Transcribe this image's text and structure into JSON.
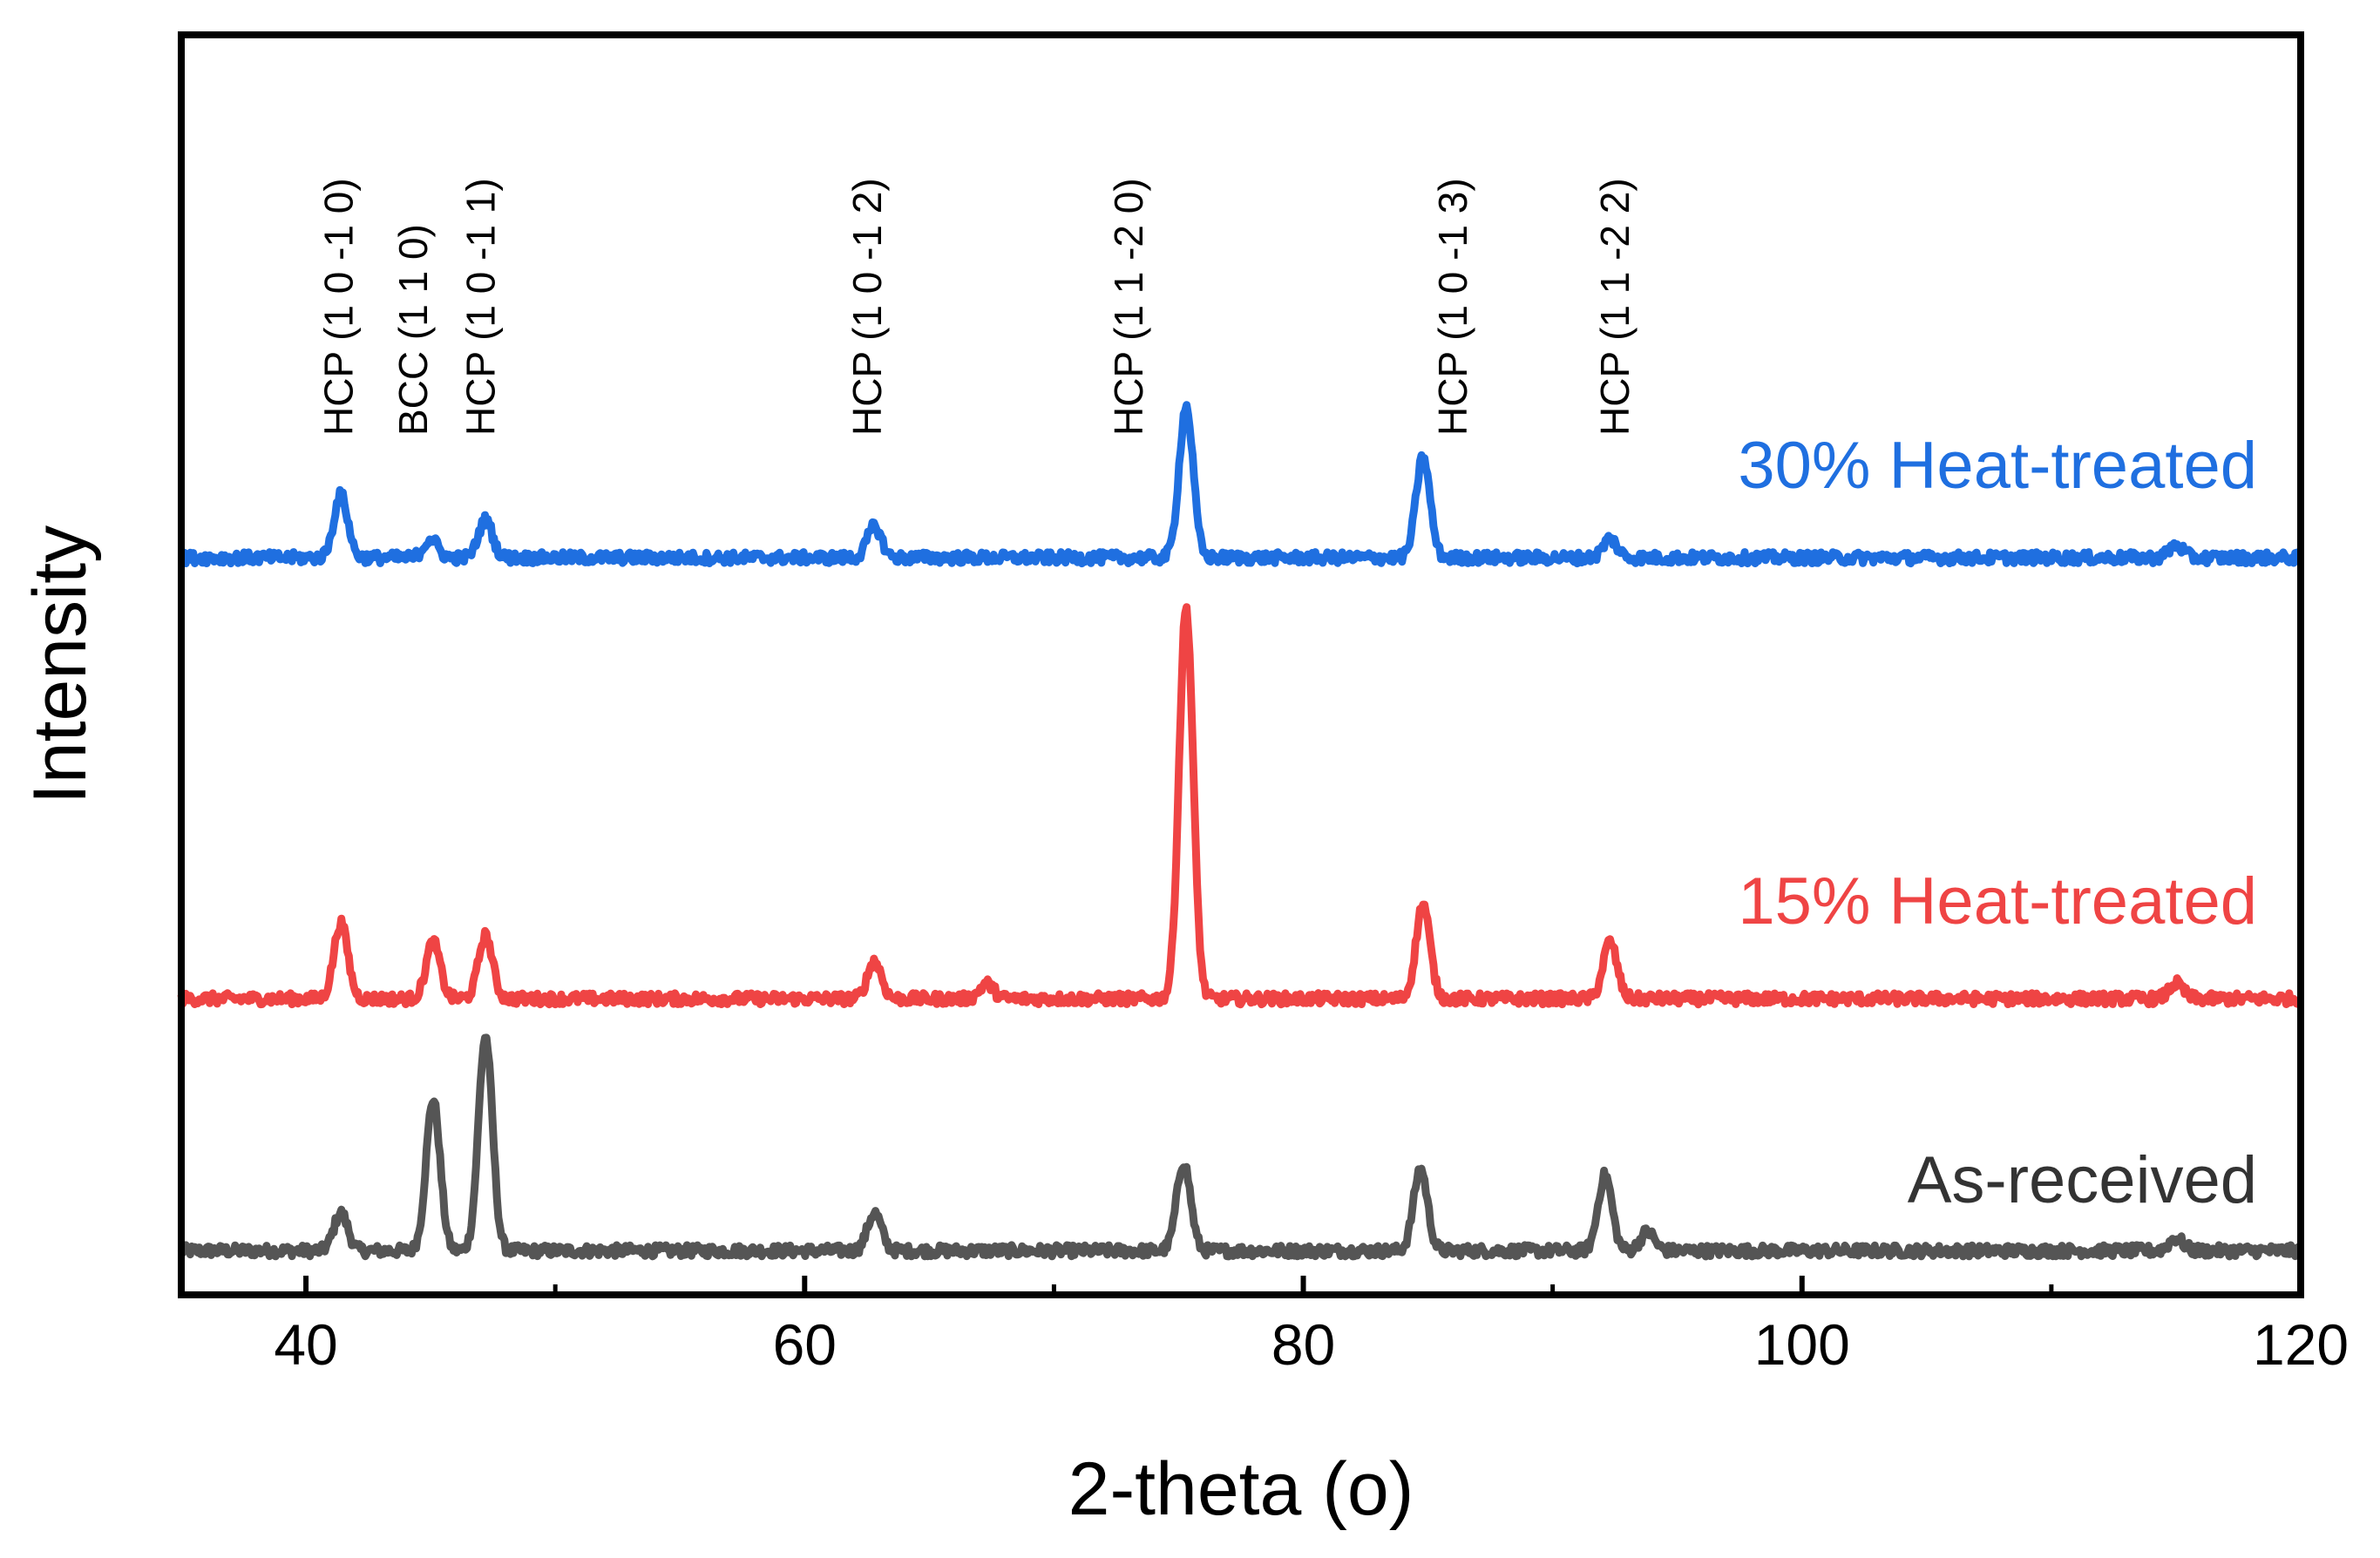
{
  "chart_data": {
    "type": "line",
    "title": "",
    "xlabel": "2-theta (o)",
    "ylabel": "Intensity",
    "xlim": [
      35,
      120
    ],
    "xticks": [
      40,
      60,
      80,
      100,
      120
    ],
    "xticks_minor": [
      50,
      70,
      90,
      110
    ],
    "ylim": [
      0,
      1
    ],
    "grid": false,
    "legend": "inline labels right",
    "peak_labels": [
      {
        "text": "HCP (1 0 -1 0)",
        "x": 41.3
      },
      {
        "text": "BCC (1 1 0)",
        "x": 44.3
      },
      {
        "text": "HCP (1 0 -1 1)",
        "x": 47.0
      },
      {
        "text": "HCP (1 0 -1 2)",
        "x": 62.5
      },
      {
        "text": "HCP (1 1 -2 0)",
        "x": 73.0
      },
      {
        "text": "HCP (1 0 -1 3)",
        "x": 86.0
      },
      {
        "text": "HCP (1 1 -2 2)",
        "x": 92.5
      }
    ],
    "series": [
      {
        "name": "As-received",
        "label": "As-received",
        "color": "#555555",
        "baseline": 0.035,
        "peaks": [
          {
            "x": 41.4,
            "height": 0.03
          },
          {
            "x": 45.1,
            "height": 0.12
          },
          {
            "x": 47.2,
            "height": 0.17
          },
          {
            "x": 62.8,
            "height": 0.03
          },
          {
            "x": 75.2,
            "height": 0.07
          },
          {
            "x": 84.7,
            "height": 0.065
          },
          {
            "x": 92.1,
            "height": 0.06
          },
          {
            "x": 93.8,
            "height": 0.015
          },
          {
            "x": 115.0,
            "height": 0.01
          }
        ]
      },
      {
        "name": "15% Heat-treated",
        "label": "15% Heat-treated",
        "color": "#ef4444",
        "baseline": 0.235,
        "peaks": [
          {
            "x": 41.4,
            "height": 0.06
          },
          {
            "x": 45.1,
            "height": 0.045
          },
          {
            "x": 47.2,
            "height": 0.05
          },
          {
            "x": 62.8,
            "height": 0.03
          },
          {
            "x": 67.3,
            "height": 0.012
          },
          {
            "x": 75.3,
            "height": 0.31
          },
          {
            "x": 84.8,
            "height": 0.075
          },
          {
            "x": 92.3,
            "height": 0.045
          },
          {
            "x": 115.0,
            "height": 0.012
          }
        ]
      },
      {
        "name": "30% Heat-treated",
        "label": "30% Heat-treated",
        "color": "#1f6fe0",
        "baseline": 0.585,
        "peaks": [
          {
            "x": 41.4,
            "height": 0.05
          },
          {
            "x": 45.0,
            "height": 0.015
          },
          {
            "x": 47.2,
            "height": 0.03
          },
          {
            "x": 62.8,
            "height": 0.025
          },
          {
            "x": 75.3,
            "height": 0.12
          },
          {
            "x": 84.8,
            "height": 0.08
          },
          {
            "x": 92.3,
            "height": 0.015
          },
          {
            "x": 115.0,
            "height": 0.01
          }
        ]
      }
    ]
  }
}
